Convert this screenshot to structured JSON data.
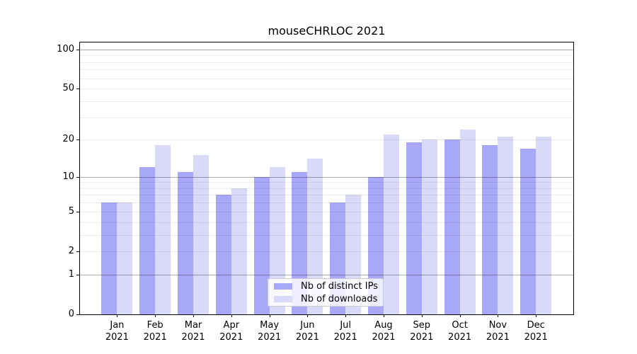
{
  "chart_data": {
    "type": "bar",
    "title": "mouseCHRLOC 2021",
    "categories": [
      "Jan",
      "Feb",
      "Mar",
      "Apr",
      "May",
      "Jun",
      "Jul",
      "Aug",
      "Sep",
      "Oct",
      "Nov",
      "Dec"
    ],
    "x_sublabel": "2021",
    "series": [
      {
        "name": "Nb of distinct IPs",
        "color": "#a8a8f8",
        "values": [
          6,
          12,
          11,
          7,
          10,
          11,
          6,
          10,
          19,
          20,
          18,
          17
        ]
      },
      {
        "name": "Nb of downloads",
        "color": "#d9d9f8",
        "values": [
          6,
          18,
          15,
          8,
          12,
          14,
          7,
          22,
          20,
          24,
          21,
          21
        ]
      }
    ],
    "yscale": "log1p",
    "y_ticks": [
      0,
      1,
      2,
      5,
      10,
      20,
      50,
      100
    ],
    "ylim": [
      0,
      113
    ],
    "grid": "horizontal",
    "legend_position": "lower center"
  }
}
